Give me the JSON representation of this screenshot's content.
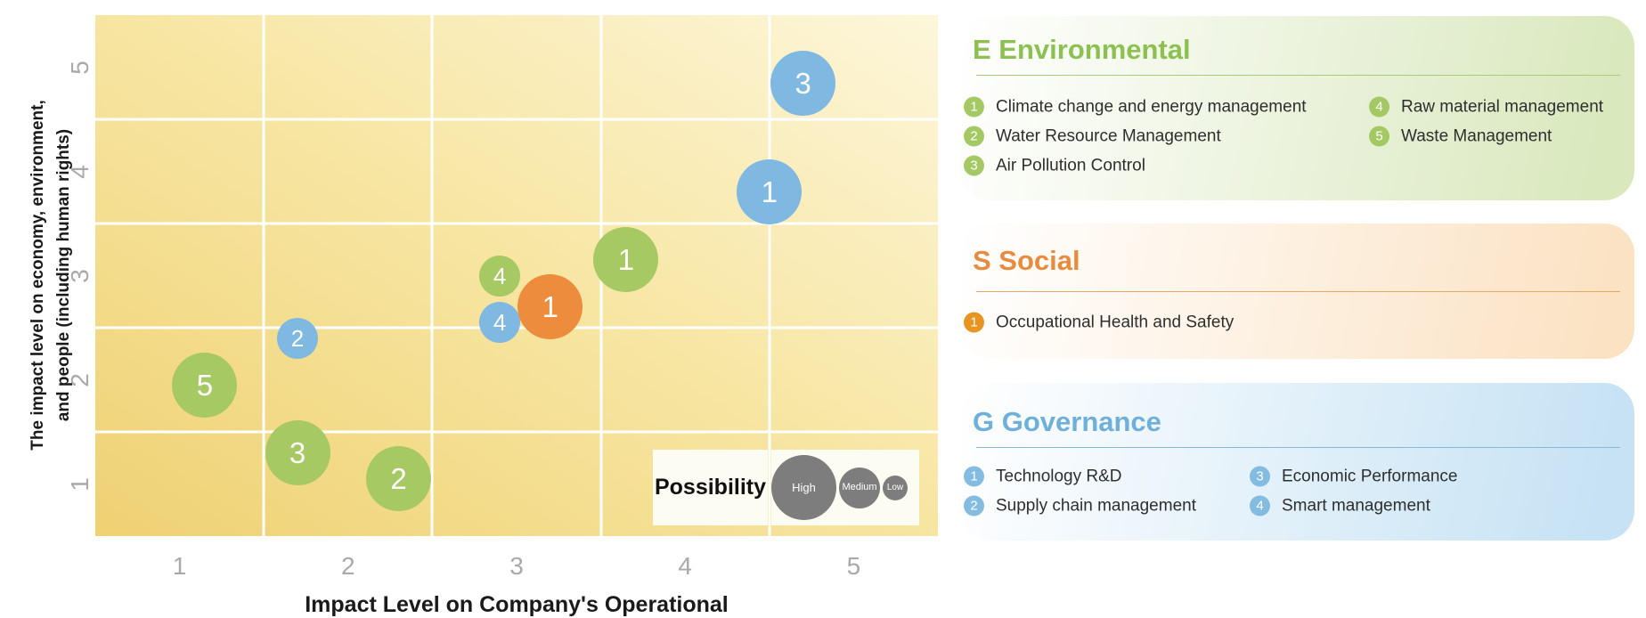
{
  "chart": {
    "x_axis": {
      "label": "Impact Level on Company's Operational",
      "ticks": [
        "1",
        "2",
        "3",
        "4",
        "5"
      ]
    },
    "y_axis": {
      "label_lines": [
        "The impact level on economy, environment,",
        "and people (including human rights)"
      ],
      "ticks": [
        "1",
        "2",
        "3",
        "4",
        "5"
      ]
    },
    "legend": {
      "title": "Possibility",
      "sizes": [
        {
          "label": "High"
        },
        {
          "label": "Medium"
        },
        {
          "label": "Low"
        }
      ],
      "circle_color": "#7d7d7d",
      "box_bg": "#fdfcf3"
    },
    "colors": {
      "plot_bg_start": "#efd173",
      "plot_bg_mid": "#f7e6a3",
      "plot_bg_end": "#fdf6da",
      "gridline": "#ffffff",
      "tick": "#a9a9a9"
    }
  },
  "chart_data": {
    "type": "scatter",
    "subtype": "bubble",
    "title": "ESG materiality matrix",
    "xlabel": "Impact Level on Company's Operational",
    "ylabel": "The impact level on economy, environment, and people (including human rights)",
    "x_range": [
      0.5,
      5.5
    ],
    "y_range": [
      0.5,
      5.5
    ],
    "x_gridlines": [
      1.5,
      2.5,
      3.5,
      4.5
    ],
    "y_gridlines": [
      1.5,
      2.5,
      3.5,
      4.5
    ],
    "size_encoding": "Possibility: High > Medium > Low",
    "series": [
      {
        "name": "Environmental",
        "color": "#a6c963",
        "points": [
          {
            "n": "1",
            "label": "Climate change and energy management",
            "x": 3.65,
            "y": 3.15,
            "possibility": "High"
          },
          {
            "n": "2",
            "label": "Water Resource Management",
            "x": 2.3,
            "y": 1.05,
            "possibility": "High"
          },
          {
            "n": "3",
            "label": "Air Pollution Control",
            "x": 1.7,
            "y": 1.3,
            "possibility": "High"
          },
          {
            "n": "4",
            "label": "Raw material management",
            "x": 2.9,
            "y": 3.0,
            "possibility": "Medium"
          },
          {
            "n": "5",
            "label": "Waste Management",
            "x": 1.15,
            "y": 1.95,
            "possibility": "High"
          }
        ]
      },
      {
        "name": "Social",
        "color": "#ec8c3c",
        "points": [
          {
            "n": "1",
            "label": "Occupational Health and Safety",
            "x": 3.2,
            "y": 2.7,
            "possibility": "High"
          }
        ]
      },
      {
        "name": "Governance",
        "color": "#7fb8e0",
        "points": [
          {
            "n": "1",
            "label": "Technology R&D",
            "x": 4.5,
            "y": 3.8,
            "possibility": "High"
          },
          {
            "n": "2",
            "label": "Supply chain management",
            "x": 1.7,
            "y": 2.4,
            "possibility": "Medium"
          },
          {
            "n": "3",
            "label": "Economic Performance",
            "x": 4.7,
            "y": 4.85,
            "possibility": "High"
          },
          {
            "n": "4",
            "label": "Smart management",
            "x": 2.9,
            "y": 2.55,
            "possibility": "Medium"
          }
        ]
      }
    ]
  },
  "panels": [
    {
      "id": "environmental",
      "title": "E Environmental",
      "title_color": "#8cc152",
      "line_color": "#a9cc78",
      "badge_color": "#a4c964",
      "bg_end": "#d9e8bd",
      "items": [
        {
          "n": "1",
          "label": "Climate change and energy management",
          "col": 0
        },
        {
          "n": "2",
          "label": "Water Resource Management",
          "col": 0
        },
        {
          "n": "3",
          "label": "Air Pollution Control",
          "col": 0
        },
        {
          "n": "4",
          "label": "Raw material management",
          "col": 1
        },
        {
          "n": "5",
          "label": "Waste Management",
          "col": 1
        }
      ]
    },
    {
      "id": "social",
      "title": "S Social",
      "title_color": "#e78b3e",
      "line_color": "#e8a766",
      "badge_color": "#e79420",
      "bg_end": "#fbe2c3",
      "items": [
        {
          "n": "1",
          "label": "Occupational Health and Safety",
          "col": 0
        }
      ]
    },
    {
      "id": "governance",
      "title": "G Governance",
      "title_color": "#6fb0da",
      "line_color": "#85b9dc",
      "badge_color": "#84bbe0",
      "bg_end": "#c6e2f4",
      "items": [
        {
          "n": "1",
          "label": "Technology R&D",
          "col": 0
        },
        {
          "n": "2",
          "label": "Supply chain management",
          "col": 0
        },
        {
          "n": "3",
          "label": "Economic Performance",
          "col": 1
        },
        {
          "n": "4",
          "label": "Smart management",
          "col": 1
        }
      ]
    }
  ]
}
